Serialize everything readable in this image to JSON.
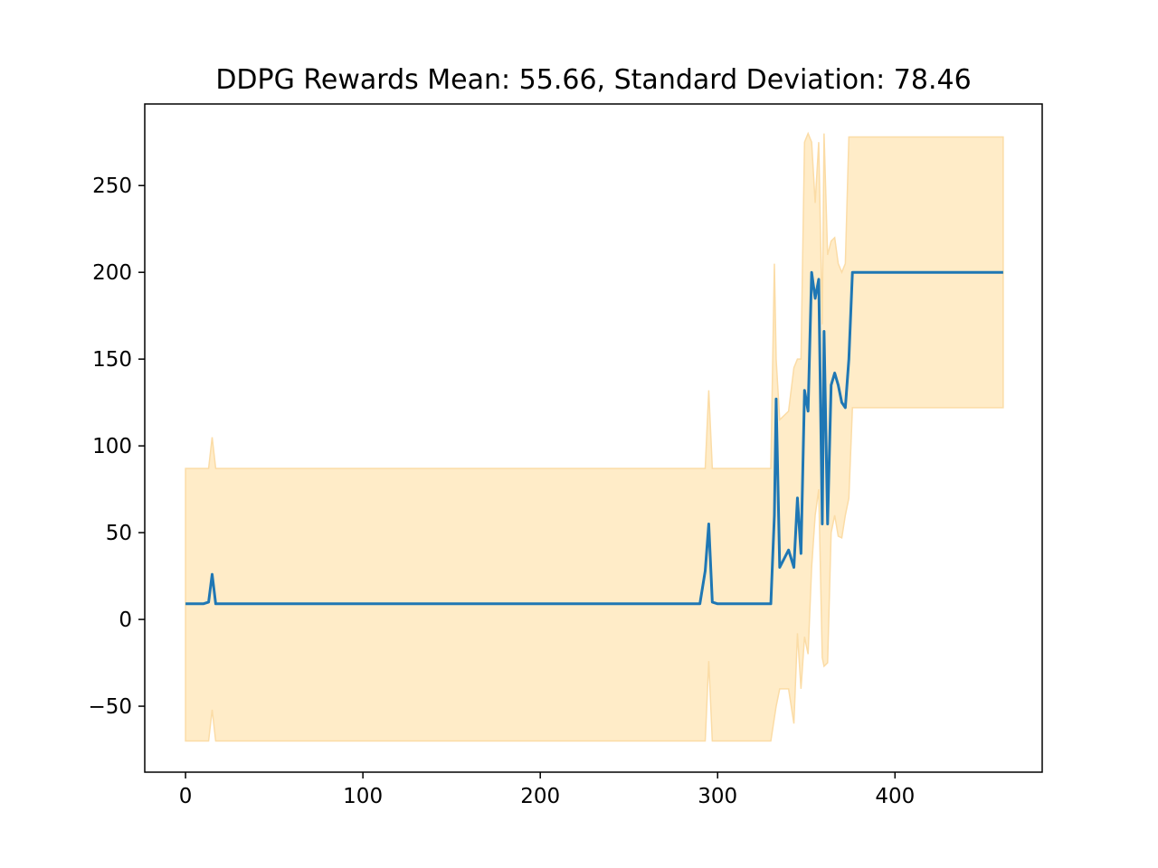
{
  "chart_data": {
    "type": "line",
    "title": "DDPG Rewards Mean: 55.66, Standard Deviation: 78.46",
    "xlabel": "",
    "ylabel": "",
    "xlim": [
      -23,
      483
    ],
    "ylim": [
      -88,
      297
    ],
    "xticks": [
      0,
      100,
      200,
      300,
      400
    ],
    "xtick_labels": [
      "0",
      "100",
      "200",
      "300",
      "400"
    ],
    "yticks": [
      -50,
      0,
      50,
      100,
      150,
      200,
      250
    ],
    "ytick_labels": [
      "−50",
      "0",
      "50",
      "100",
      "150",
      "200",
      "250"
    ],
    "grid": false,
    "legend": "none",
    "colors": {
      "line": "#1f77b4",
      "band_fill": "#ffecc8",
      "band_edge": "#fbdca6"
    },
    "series": [
      {
        "points": [
          [
            0,
            9
          ],
          [
            5,
            9
          ],
          [
            10,
            9
          ],
          [
            13,
            10
          ],
          [
            15,
            26
          ],
          [
            17,
            9
          ],
          [
            30,
            9
          ],
          [
            60,
            9
          ],
          [
            100,
            9
          ],
          [
            150,
            9
          ],
          [
            200,
            9
          ],
          [
            250,
            9
          ],
          [
            290,
            9
          ],
          [
            293,
            28
          ],
          [
            295,
            55
          ],
          [
            297,
            10
          ],
          [
            300,
            9
          ],
          [
            330,
            9
          ],
          [
            332,
            60
          ],
          [
            333,
            127
          ],
          [
            335,
            30
          ],
          [
            340,
            40
          ],
          [
            343,
            30
          ],
          [
            345,
            70
          ],
          [
            347,
            38
          ],
          [
            349,
            132
          ],
          [
            351,
            120
          ],
          [
            353,
            200
          ],
          [
            355,
            185
          ],
          [
            357,
            196
          ],
          [
            359,
            55
          ],
          [
            360,
            166
          ],
          [
            362,
            55
          ],
          [
            364,
            135
          ],
          [
            366,
            142
          ],
          [
            368,
            135
          ],
          [
            370,
            125
          ],
          [
            372,
            122
          ],
          [
            374,
            150
          ],
          [
            376,
            200
          ],
          [
            461,
            200
          ]
        ],
        "band_lower": [
          [
            0,
            -70
          ],
          [
            13,
            -70
          ],
          [
            15,
            -52
          ],
          [
            17,
            -70
          ],
          [
            293,
            -70
          ],
          [
            295,
            -24
          ],
          [
            297,
            -70
          ],
          [
            330,
            -70
          ],
          [
            333,
            -50
          ],
          [
            335,
            -40
          ],
          [
            340,
            -40
          ],
          [
            343,
            -60
          ],
          [
            345,
            -8
          ],
          [
            347,
            -40
          ],
          [
            349,
            -10
          ],
          [
            351,
            -20
          ],
          [
            353,
            30
          ],
          [
            355,
            60
          ],
          [
            357,
            75
          ],
          [
            359,
            -22
          ],
          [
            360,
            -27
          ],
          [
            362,
            -25
          ],
          [
            364,
            50
          ],
          [
            366,
            60
          ],
          [
            368,
            48
          ],
          [
            370,
            47
          ],
          [
            372,
            60
          ],
          [
            374,
            70
          ],
          [
            376,
            122
          ],
          [
            461,
            122
          ]
        ],
        "band_upper": [
          [
            0,
            87
          ],
          [
            13,
            87
          ],
          [
            15,
            105
          ],
          [
            17,
            87
          ],
          [
            293,
            87
          ],
          [
            295,
            132
          ],
          [
            297,
            87
          ],
          [
            330,
            87
          ],
          [
            332,
            205
          ],
          [
            333,
            150
          ],
          [
            335,
            115
          ],
          [
            340,
            120
          ],
          [
            343,
            145
          ],
          [
            345,
            150
          ],
          [
            347,
            150
          ],
          [
            349,
            275
          ],
          [
            351,
            280
          ],
          [
            353,
            275
          ],
          [
            355,
            240
          ],
          [
            357,
            275
          ],
          [
            359,
            170
          ],
          [
            360,
            280
          ],
          [
            362,
            210
          ],
          [
            364,
            218
          ],
          [
            366,
            220
          ],
          [
            368,
            205
          ],
          [
            370,
            200
          ],
          [
            372,
            205
          ],
          [
            374,
            278
          ],
          [
            376,
            278
          ],
          [
            461,
            278
          ]
        ]
      }
    ]
  }
}
